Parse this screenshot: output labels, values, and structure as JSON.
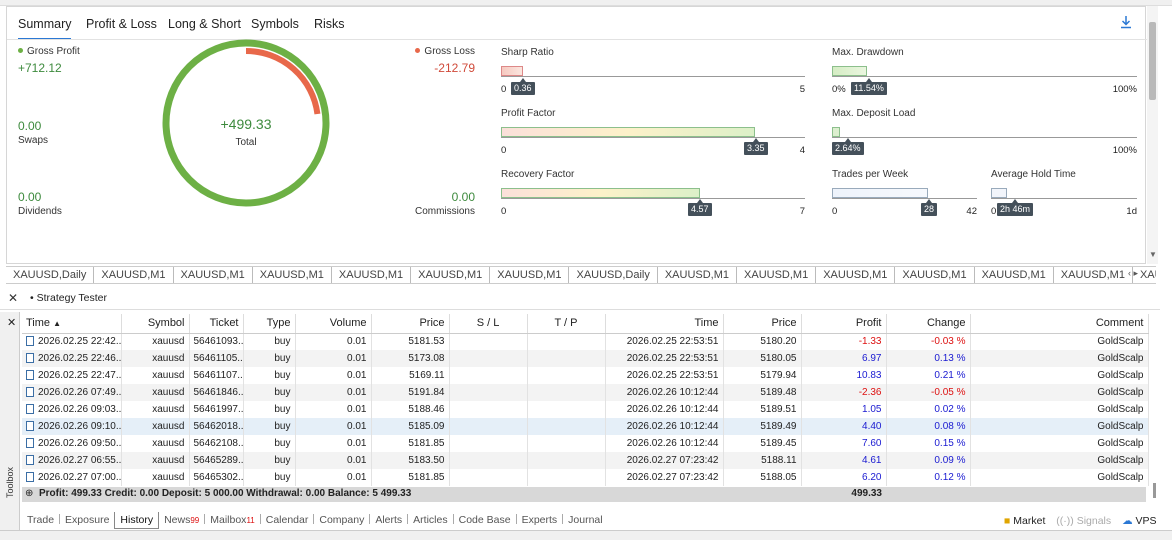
{
  "report_tabs": [
    "Summary",
    "Profit & Loss",
    "Long & Short",
    "Symbols",
    "Risks"
  ],
  "gross_profit": {
    "label": "Gross Profit",
    "value": "+712.12"
  },
  "gross_loss": {
    "label": "Gross Loss",
    "value": "-212.79"
  },
  "swaps": {
    "value": "0.00",
    "label": "Swaps"
  },
  "dividends": {
    "value": "0.00",
    "label": "Dividends"
  },
  "commissions": {
    "value": "0.00",
    "label": "Commissions"
  },
  "total": {
    "value": "+499.33",
    "label": "Total"
  },
  "donut": {
    "profit_color": "#6db045",
    "loss_color": "#e8684a",
    "loss_fraction": 0.23
  },
  "metrics": {
    "sharp_ratio": {
      "title": "Sharp Ratio",
      "value": "0.36",
      "min": "0",
      "max": "5",
      "fraction": 0.072
    },
    "profit_factor": {
      "title": "Profit Factor",
      "value": "3.35",
      "min": "0",
      "max": "4",
      "fraction": 0.8375
    },
    "recovery_factor": {
      "title": "Recovery Factor",
      "value": "4.57",
      "min": "0",
      "max": "7",
      "fraction": 0.653
    },
    "max_drawdown": {
      "title": "Max. Drawdown",
      "value": "11.54%",
      "min": "0%",
      "max": "100%",
      "fraction": 0.1154
    },
    "max_deposit_load": {
      "title": "Max. Deposit Load",
      "value": "2.64%",
      "min": "0",
      "max": "100%",
      "fraction": 0.0264
    },
    "trades_per_week": {
      "title": "Trades per Week",
      "value": "28",
      "min": "0",
      "max": "42",
      "fraction": 0.667
    },
    "average_hold_time": {
      "title": "Average Hold Time",
      "value": "2h 46m",
      "min": "0",
      "max": "1d",
      "fraction": 0.115
    }
  },
  "chart_tabs": [
    "XAUUSD,Daily",
    "XAUUSD,M1",
    "XAUUSD,M1",
    "XAUUSD,M1",
    "XAUUSD,M1",
    "XAUUSD,M1",
    "XAUUSD,M1",
    "XAUUSD,Daily",
    "XAUUSD,M1",
    "XAUUSD,M1",
    "XAUUSD,M1",
    "XAUUSD,M1",
    "XAUUSD,M1",
    "XAUUSD,M1",
    "XAUUSI"
  ],
  "strategy_tester": {
    "title": "Strategy Tester"
  },
  "table": {
    "headers": [
      "Time",
      "Symbol",
      "Ticket",
      "Type",
      "Volume",
      "Price",
      "S / L",
      "T / P",
      "Time",
      "Price",
      "Profit",
      "Change",
      "Comment"
    ],
    "rows": [
      [
        "2026.02.25 22:42...",
        "xauusd",
        "56461093...",
        "buy",
        "0.01",
        "5181.53",
        "",
        "",
        "2026.02.25 22:53:51",
        "5180.20",
        "-1.33",
        "-0.03 %",
        "GoldScalp"
      ],
      [
        "2026.02.25 22:46...",
        "xauusd",
        "56461105...",
        "buy",
        "0.01",
        "5173.08",
        "",
        "",
        "2026.02.25 22:53:51",
        "5180.05",
        "6.97",
        "0.13 %",
        "GoldScalp"
      ],
      [
        "2026.02.25 22:47...",
        "xauusd",
        "56461107...",
        "buy",
        "0.01",
        "5169.11",
        "",
        "",
        "2026.02.25 22:53:51",
        "5179.94",
        "10.83",
        "0.21 %",
        "GoldScalp"
      ],
      [
        "2026.02.26 07:49...",
        "xauusd",
        "56461846...",
        "buy",
        "0.01",
        "5191.84",
        "",
        "",
        "2026.02.26 10:12:44",
        "5189.48",
        "-2.36",
        "-0.05 %",
        "GoldScalp"
      ],
      [
        "2026.02.26 09:03...",
        "xauusd",
        "56461997...",
        "buy",
        "0.01",
        "5188.46",
        "",
        "",
        "2026.02.26 10:12:44",
        "5189.51",
        "1.05",
        "0.02 %",
        "GoldScalp"
      ],
      [
        "2026.02.26 09:10...",
        "xauusd",
        "56462018...",
        "buy",
        "0.01",
        "5185.09",
        "",
        "",
        "2026.02.26 10:12:44",
        "5189.49",
        "4.40",
        "0.08 %",
        "GoldScalp"
      ],
      [
        "2026.02.26 09:50...",
        "xauusd",
        "56462108...",
        "buy",
        "0.01",
        "5181.85",
        "",
        "",
        "2026.02.26 10:12:44",
        "5189.45",
        "7.60",
        "0.15 %",
        "GoldScalp"
      ],
      [
        "2026.02.27 06:55...",
        "xauusd",
        "56465289...",
        "buy",
        "0.01",
        "5183.50",
        "",
        "",
        "2026.02.27 07:23:42",
        "5188.11",
        "4.61",
        "0.09 %",
        "GoldScalp"
      ],
      [
        "2026.02.27 07:00...",
        "xauusd",
        "56465302...",
        "buy",
        "0.01",
        "5181.85",
        "",
        "",
        "2026.02.27 07:23:42",
        "5188.05",
        "6.20",
        "0.12 %",
        "GoldScalp"
      ]
    ]
  },
  "summary_row": {
    "text": "Profit: 499.33  Credit: 0.00  Deposit: 5 000.00  Withdrawal: 0.00  Balance: 5 499.33",
    "profit": "499.33"
  },
  "bottom_tabs": [
    {
      "label": "Trade"
    },
    {
      "label": "Exposure"
    },
    {
      "label": "History",
      "active": true
    },
    {
      "label": "News",
      "badge": "99"
    },
    {
      "label": "Mailbox",
      "badge": "11"
    },
    {
      "label": "Calendar"
    },
    {
      "label": "Company"
    },
    {
      "label": "Alerts"
    },
    {
      "label": "Articles"
    },
    {
      "label": "Code Base"
    },
    {
      "label": "Experts"
    },
    {
      "label": "Journal"
    }
  ],
  "right_tabs": {
    "market": "Market",
    "signals": "Signals",
    "vps": "VPS"
  },
  "toolbox_label": "Toolbox"
}
